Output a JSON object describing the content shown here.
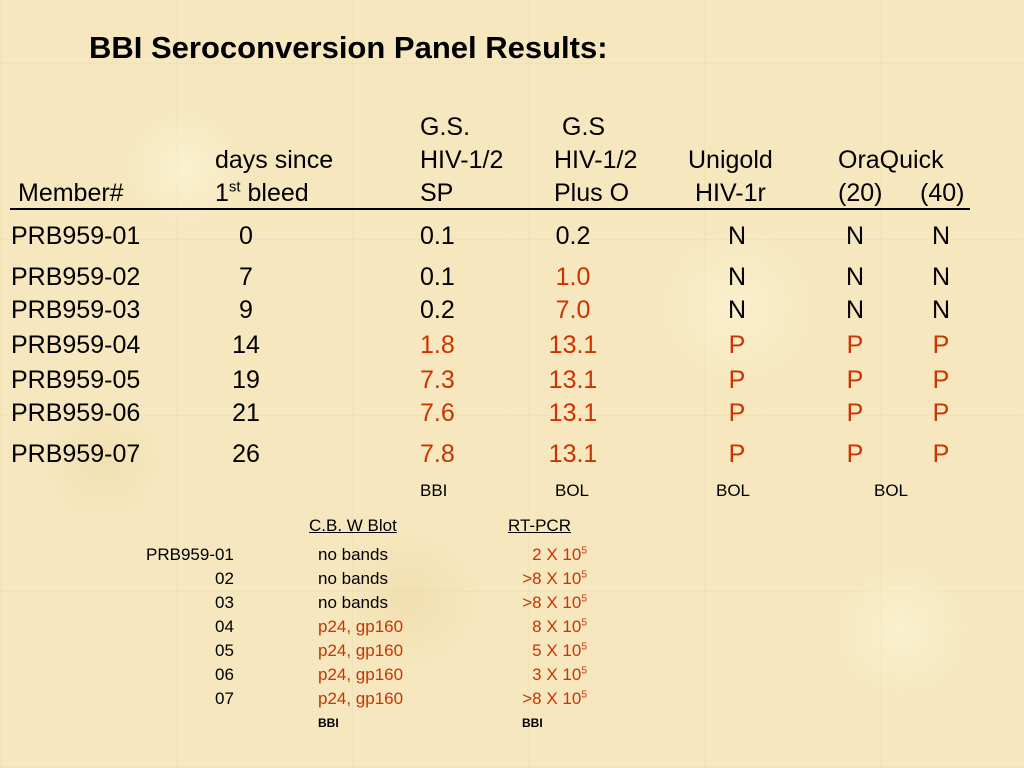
{
  "title": "BBI Seroconversion Panel Results:",
  "header": {
    "member": "Member#",
    "days_line1": "days since",
    "days_line2_a": "1",
    "days_line2_sup": "st",
    "days_line2_b": " bleed",
    "gs1_l1": "G.S.",
    "gs1_l2": "HIV-1/2",
    "gs1_l3": "SP",
    "gs2_l1": "G.S",
    "gs2_l2": "HIV-1/2",
    "gs2_l3": "Plus O",
    "uni_l1": "Unigold",
    "uni_l2": "HIV-1r",
    "ora_l1": "OraQuick",
    "ora_20": "(20)",
    "ora_40": "(40)"
  },
  "rows": [
    {
      "member": "PRB959-01",
      "days": "0",
      "gs1": "0.1",
      "gs2": "0.2",
      "uni": "N",
      "ora20": "N",
      "ora40": "N"
    },
    {
      "member": "PRB959-02",
      "days": "7",
      "gs1": "0.1",
      "gs2": "1.0",
      "uni": "N",
      "ora20": "N",
      "ora40": "N"
    },
    {
      "member": "PRB959-03",
      "days": "9",
      "gs1": "0.2",
      "gs2": "7.0",
      "uni": "N",
      "ora20": "N",
      "ora40": "N"
    },
    {
      "member": "PRB959-04",
      "days": "14",
      "gs1": "1.8",
      "gs2": "13.1",
      "uni": "P",
      "ora20": "P",
      "ora40": "P"
    },
    {
      "member": "PRB959-05",
      "days": "19",
      "gs1": "7.3",
      "gs2": "13.1",
      "uni": "P",
      "ora20": "P",
      "ora40": "P"
    },
    {
      "member": "PRB959-06",
      "days": "21",
      "gs1": "7.6",
      "gs2": "13.1",
      "uni": "P",
      "ora20": "P",
      "ora40": "P"
    },
    {
      "member": "PRB959-07",
      "days": "26",
      "gs1": "7.8",
      "gs2": "13.1",
      "uni": "P",
      "ora20": "P",
      "ora40": "P"
    }
  ],
  "labs": {
    "gs1": "BBI",
    "gs2": "BOL",
    "uni": "BOL",
    "ora": "BOL"
  },
  "lower": {
    "wb_header": "C.B. W Blot",
    "pcr_header": "RT-PCR",
    "rows": [
      {
        "id": "PRB959-01",
        "wb": "no bands",
        "pcr_pre": "2 X 10",
        "pcr_sup": "5"
      },
      {
        "id": "02",
        "wb": "no bands",
        "pcr_pre": ">8 X 10",
        "pcr_sup": "5"
      },
      {
        "id": "03",
        "wb": "no bands",
        "pcr_pre": ">8 X 10",
        "pcr_sup": "5"
      },
      {
        "id": "04",
        "wb": "p24, gp160",
        "pcr_pre": "8 X 10",
        "pcr_sup": "5"
      },
      {
        "id": "05",
        "wb": "p24, gp160",
        "pcr_pre": "5 X 10",
        "pcr_sup": "5"
      },
      {
        "id": "06",
        "wb": "p24, gp160",
        "pcr_pre": "3 X 10",
        "pcr_sup": "5"
      },
      {
        "id": "07",
        "wb": "p24, gp160",
        "pcr_pre": ">8 X 10",
        "pcr_sup": "5"
      }
    ],
    "wb_lab": "BBI",
    "pcr_lab": "BBI"
  },
  "colors": {
    "positive": "#cc3300",
    "background": "#f6e7be",
    "text": "#000000"
  }
}
